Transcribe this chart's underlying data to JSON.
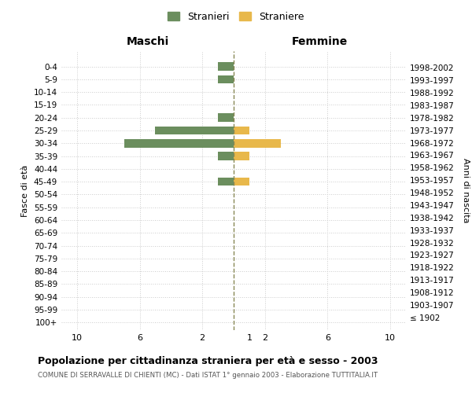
{
  "age_groups": [
    "100+",
    "95-99",
    "90-94",
    "85-89",
    "80-84",
    "75-79",
    "70-74",
    "65-69",
    "60-64",
    "55-59",
    "50-54",
    "45-49",
    "40-44",
    "35-39",
    "30-34",
    "25-29",
    "20-24",
    "15-19",
    "10-14",
    "5-9",
    "0-4"
  ],
  "birth_years": [
    "≤ 1902",
    "1903-1907",
    "1908-1912",
    "1913-1917",
    "1918-1922",
    "1923-1927",
    "1928-1932",
    "1933-1937",
    "1938-1942",
    "1943-1947",
    "1948-1952",
    "1953-1957",
    "1958-1962",
    "1963-1967",
    "1968-1972",
    "1973-1977",
    "1978-1982",
    "1983-1987",
    "1988-1992",
    "1993-1997",
    "1998-2002"
  ],
  "males": [
    0,
    0,
    0,
    0,
    0,
    0,
    0,
    0,
    0,
    0,
    0,
    1,
    0,
    1,
    7,
    5,
    1,
    0,
    0,
    1,
    1
  ],
  "females": [
    0,
    0,
    0,
    0,
    0,
    0,
    0,
    0,
    0,
    0,
    0,
    1,
    0,
    1,
    3,
    1,
    0,
    0,
    0,
    0,
    0
  ],
  "male_color": "#6b8e5e",
  "female_color": "#e8b84b",
  "dashed_line_color": "#888855",
  "title": "Popolazione per cittadinanza straniera per età e sesso - 2003",
  "subtitle": "COMUNE DI SERRAVALLE DI CHIENTI (MC) - Dati ISTAT 1° gennaio 2003 - Elaborazione TUTTITALIA.IT",
  "xlabel_left": "Maschi",
  "xlabel_right": "Femmine",
  "ylabel_left": "Fasce di età",
  "ylabel_right": "Anni di nascita",
  "legend_male": "Stranieri",
  "legend_female": "Straniere",
  "xlim": 11,
  "background_color": "#ffffff",
  "grid_color": "#cccccc"
}
